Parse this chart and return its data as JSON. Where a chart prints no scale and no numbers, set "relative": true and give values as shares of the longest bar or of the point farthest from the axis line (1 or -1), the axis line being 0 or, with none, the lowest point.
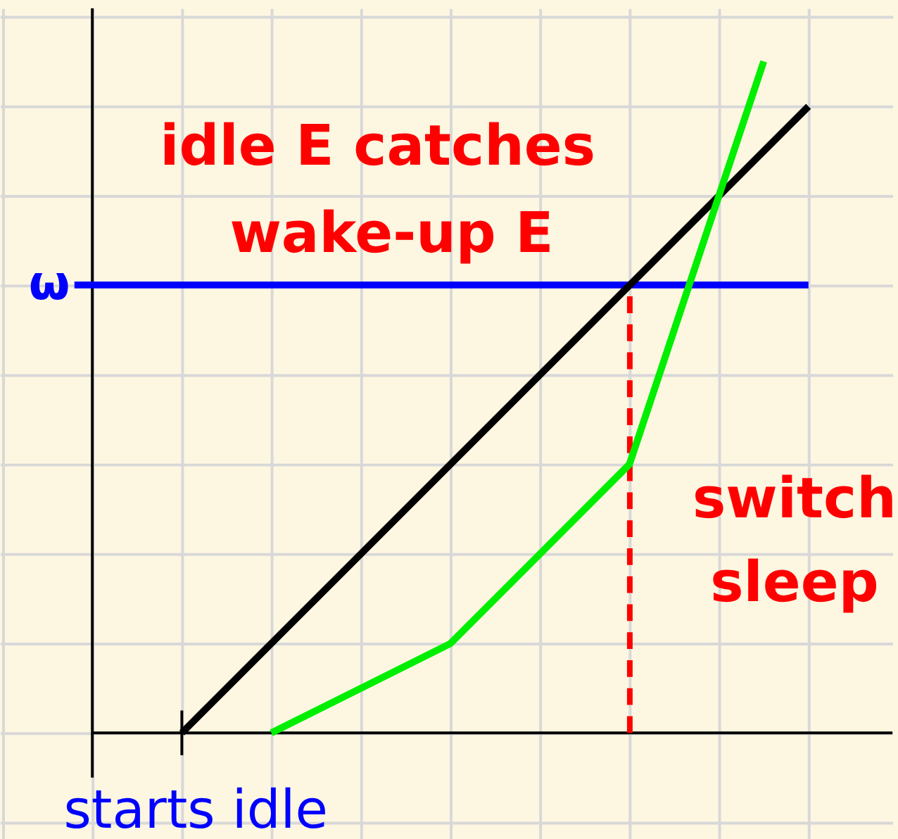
{
  "chart_data": {
    "type": "line",
    "relative": true,
    "grid": true,
    "line_style": "solid",
    "marker": "none",
    "categories": [
      null,
      null,
      null,
      null,
      null,
      null,
      null,
      null,
      null,
      null,
      null,
      null,
      null,
      null,
      null,
      null,
      null
    ],
    "series": [
      {
        "color": "#000000",
        "values": [
          null,
          null,
          0,
          null,
          null,
          null,
          null,
          null,
          null,
          null,
          null,
          null,
          null,
          null,
          null,
          null,
          0.933
        ]
      },
      {
        "color": "#00ee00",
        "values": [
          null,
          null,
          null,
          null,
          0,
          null,
          null,
          null,
          0.133,
          null,
          null,
          null,
          0.4,
          null,
          null,
          1,
          null
        ]
      }
    ],
    "ref_lines": [
      {
        "axis": "y",
        "value": 0.667,
        "label": "ω",
        "color": "#0000ff"
      }
    ],
    "annotations": [
      "idle E catches",
      "wake-up E",
      "switch",
      "sleep",
      "starts idle"
    ]
  }
}
